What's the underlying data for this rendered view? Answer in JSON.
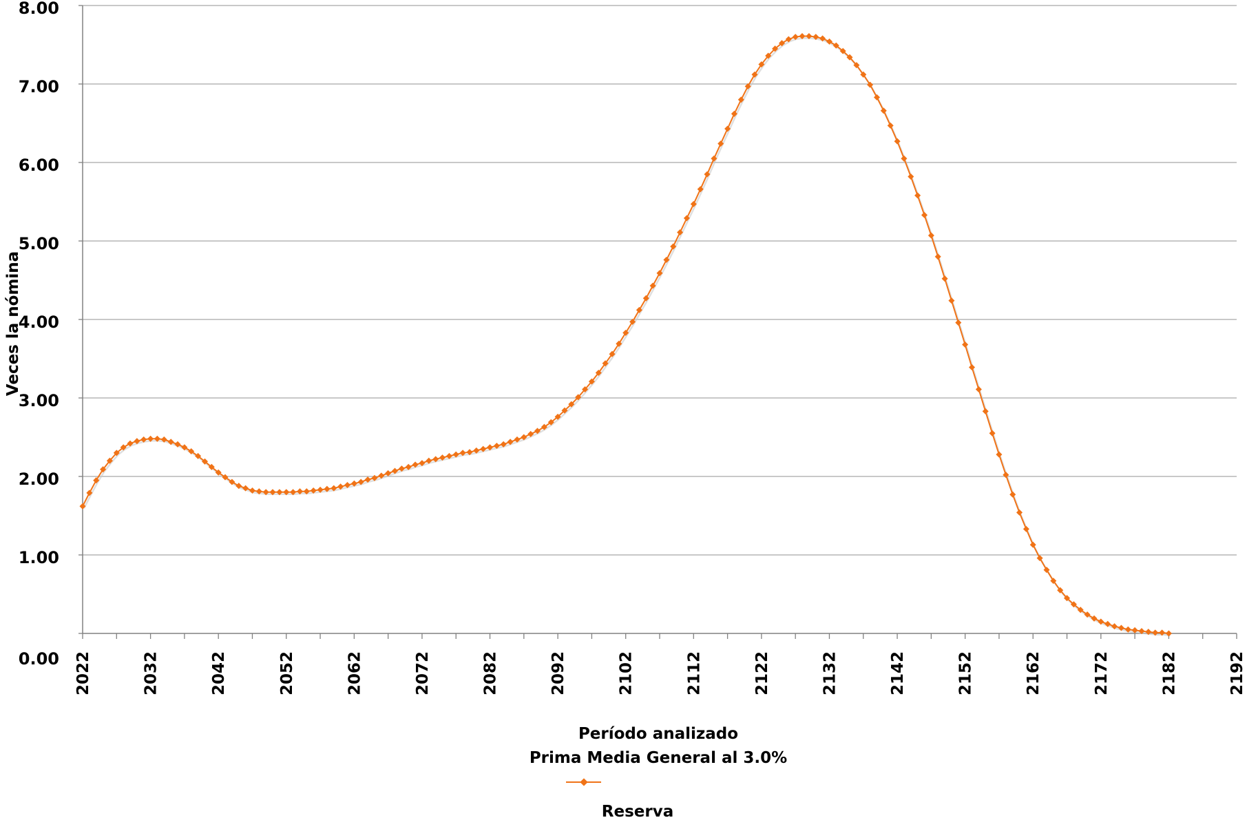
{
  "chart_data": {
    "type": "line",
    "ylabel": "Veces la nómina",
    "xlabel": "Período analizado",
    "subtitle": "Prima Media General al 3.0%",
    "legend": {
      "position": "bottom",
      "entries": [
        "Reserva"
      ]
    },
    "ylim": [
      0,
      8
    ],
    "yticks": [
      "0.00",
      "1.00",
      "2.00",
      "3.00",
      "4.00",
      "5.00",
      "6.00",
      "7.00",
      "8.00"
    ],
    "xlim": [
      2022,
      2192
    ],
    "xticks": [
      "2022",
      "2032",
      "2042",
      "2052",
      "2062",
      "2072",
      "2082",
      "2092",
      "2102",
      "2112",
      "2122",
      "2132",
      "2142",
      "2152",
      "2162",
      "2172",
      "2182",
      "2192"
    ],
    "grid": true,
    "colors": {
      "series": "#f07317",
      "grid": "#a6a6a6",
      "axis": "#808080"
    },
    "series": [
      {
        "name": "Reserva",
        "x_start": 2022,
        "x_step": 1,
        "values": [
          1.62,
          1.79,
          1.95,
          2.09,
          2.2,
          2.3,
          2.37,
          2.42,
          2.45,
          2.47,
          2.48,
          2.48,
          2.47,
          2.44,
          2.41,
          2.37,
          2.32,
          2.26,
          2.19,
          2.12,
          2.05,
          1.99,
          1.93,
          1.88,
          1.85,
          1.82,
          1.81,
          1.8,
          1.8,
          1.8,
          1.8,
          1.8,
          1.81,
          1.81,
          1.82,
          1.83,
          1.84,
          1.85,
          1.87,
          1.89,
          1.91,
          1.93,
          1.96,
          1.98,
          2.01,
          2.04,
          2.07,
          2.1,
          2.12,
          2.15,
          2.17,
          2.2,
          2.22,
          2.24,
          2.26,
          2.28,
          2.3,
          2.31,
          2.33,
          2.35,
          2.37,
          2.39,
          2.41,
          2.44,
          2.47,
          2.5,
          2.54,
          2.58,
          2.63,
          2.69,
          2.76,
          2.84,
          2.92,
          3.01,
          3.11,
          3.21,
          3.32,
          3.44,
          3.56,
          3.69,
          3.83,
          3.97,
          4.12,
          4.27,
          4.43,
          4.59,
          4.76,
          4.93,
          5.11,
          5.29,
          5.47,
          5.66,
          5.85,
          6.05,
          6.24,
          6.43,
          6.62,
          6.8,
          6.97,
          7.12,
          7.25,
          7.36,
          7.45,
          7.52,
          7.57,
          7.6,
          7.61,
          7.61,
          7.6,
          7.58,
          7.54,
          7.49,
          7.42,
          7.34,
          7.24,
          7.12,
          6.99,
          6.83,
          6.66,
          6.47,
          6.27,
          6.05,
          5.82,
          5.58,
          5.33,
          5.07,
          4.8,
          4.52,
          4.24,
          3.96,
          3.68,
          3.39,
          3.11,
          2.83,
          2.55,
          2.28,
          2.02,
          1.77,
          1.54,
          1.33,
          1.13,
          0.96,
          0.81,
          0.67,
          0.55,
          0.45,
          0.37,
          0.3,
          0.24,
          0.19,
          0.15,
          0.12,
          0.09,
          0.07,
          0.05,
          0.04,
          0.03,
          0.02,
          0.01,
          0.01,
          0.0
        ]
      }
    ]
  }
}
